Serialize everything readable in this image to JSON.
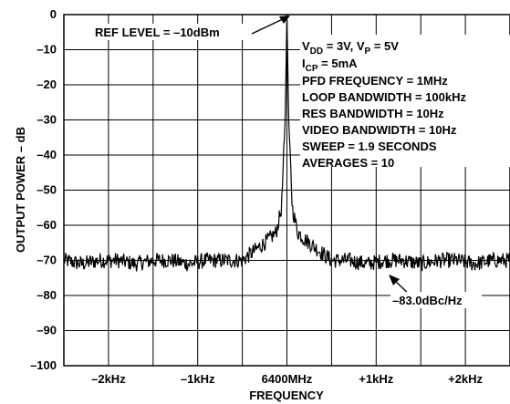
{
  "chart_data": {
    "type": "line",
    "title": "",
    "xlabel": "FREQUENCY",
    "ylabel": "OUTPUT POWER – dB",
    "ylim": [
      -100,
      0
    ],
    "xlim": [
      -2.5,
      2.5
    ],
    "x_unit": "kHz offset from 6400MHz",
    "grid": true,
    "y_ticks": [
      "0",
      "–10",
      "–20",
      "–30",
      "–40",
      "–50",
      "–60",
      "–70",
      "–80",
      "–90",
      "–100"
    ],
    "x_ticks": [
      {
        "value": -2,
        "label": "–2kHz"
      },
      {
        "value": -1,
        "label": "–1kHz"
      },
      {
        "value": 0,
        "label": "6400MHz"
      },
      {
        "value": 1,
        "label": "+1kHz"
      },
      {
        "value": 2,
        "label": "+2kHz"
      }
    ],
    "series": [
      {
        "color": "#000000",
        "x": [
          -2.5,
          -2.3,
          -2.1,
          -1.9,
          -1.7,
          -1.5,
          -1.3,
          -1.1,
          -0.9,
          -0.7,
          -0.5,
          -0.4,
          -0.3,
          -0.2,
          -0.12,
          -0.06,
          -0.02,
          0,
          0.02,
          0.06,
          0.12,
          0.2,
          0.3,
          0.4,
          0.5,
          0.7,
          0.9,
          1.1,
          1.3,
          1.5,
          1.7,
          1.9,
          2.1,
          2.3,
          2.5
        ],
        "y": [
          -70,
          -71,
          -70,
          -70,
          -71,
          -70,
          -70,
          -71,
          -70,
          -70,
          -70,
          -68,
          -66,
          -64,
          -62,
          -55,
          -30,
          0,
          -30,
          -55,
          -62,
          -64,
          -66,
          -68,
          -70,
          -70,
          -71,
          -70,
          -70,
          -71,
          -70,
          -70,
          -71,
          -70,
          -70
        ]
      }
    ],
    "annotations": {
      "ref_level": "REF LEVEL = –10dBm",
      "vdd_vp": {
        "main1": "V",
        "sub1": "DD",
        "mid": " = 3V, V",
        "sub2": "P",
        "end": " = 5V"
      },
      "icp": {
        "main": "I",
        "sub": "CP",
        "end": " = 5mA"
      },
      "pfd": "PFD FREQUENCY = 1MHz",
      "loop_bw": "LOOP BANDWIDTH = 100kHz",
      "res_bw": "RES BANDWIDTH = 10Hz",
      "video_bw": "VIDEO BANDWIDTH = 10Hz",
      "sweep": "SWEEP = 1.9 SECONDS",
      "averages": "AVERAGES = 10",
      "noise": "–83.0dBc/Hz"
    }
  }
}
